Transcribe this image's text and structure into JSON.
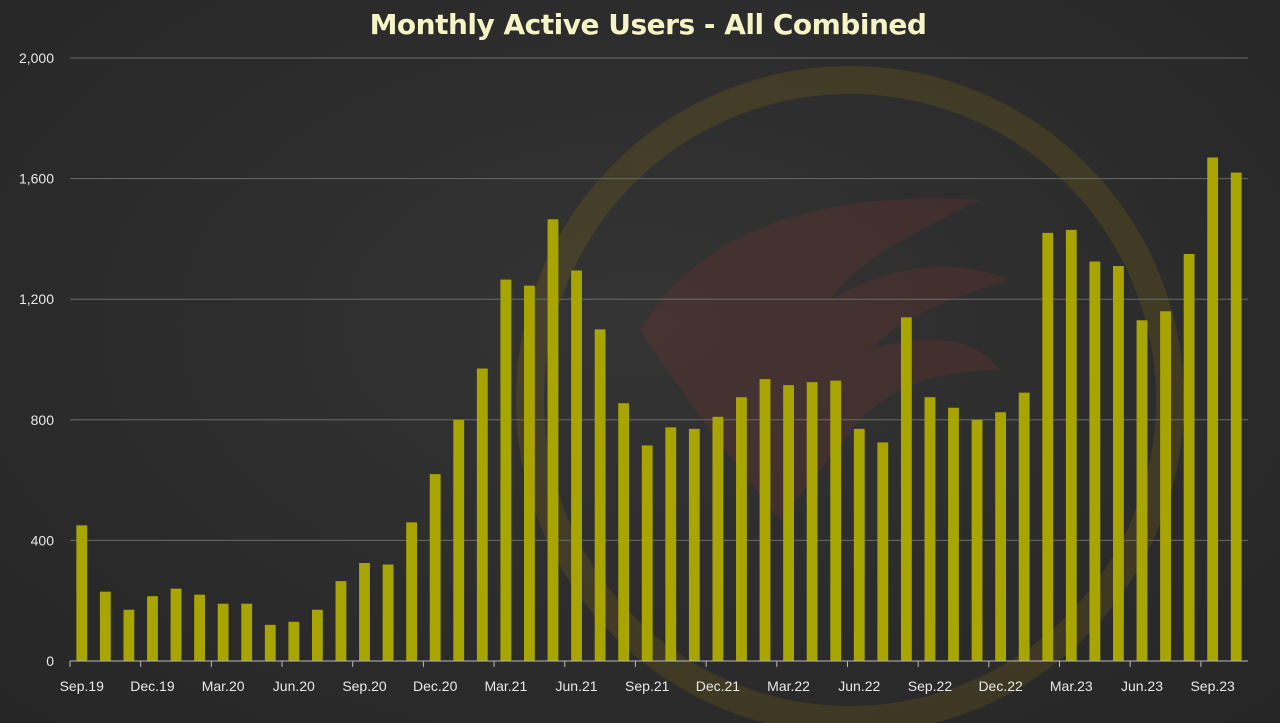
{
  "chart_data": {
    "type": "bar",
    "title": "Monthly Active Users - All Combined",
    "xlabel": "",
    "ylabel": "",
    "ylim": [
      0,
      2000
    ],
    "yticks": [
      "0",
      "400",
      "800",
      "1,200",
      "1,600",
      "2,000"
    ],
    "ytick_values": [
      0,
      400,
      800,
      1200,
      1600,
      2000
    ],
    "grid": true,
    "legend": "none",
    "bar_color": "#a8a400",
    "categories": [
      "Sep.19",
      "Oct.19",
      "Nov.19",
      "Dec.19",
      "Jan.20",
      "Feb.20",
      "Mar.20",
      "Apr.20",
      "May.20",
      "Jun.20",
      "Jul.20",
      "Aug.20",
      "Sep.20",
      "Oct.20",
      "Nov.20",
      "Dec.20",
      "Jan.21",
      "Feb.21",
      "Mar.21",
      "Apr.21",
      "May.21",
      "Jun.21",
      "Jul.21",
      "Aug.21",
      "Sep.21",
      "Oct.21",
      "Nov.21",
      "Dec.21",
      "Jan.22",
      "Feb.22",
      "Mar.22",
      "Apr.22",
      "May.22",
      "Jun.22",
      "Jul.22",
      "Aug.22",
      "Sep.22",
      "Oct.22",
      "Nov.22",
      "Dec.22",
      "Jan.23",
      "Feb.23",
      "Mar.23",
      "Apr.23",
      "May.23",
      "Jun.23",
      "Jul.23",
      "Aug.23",
      "Sep.23",
      "Oct.23"
    ],
    "xtick_labels_shown": [
      "Sep.19",
      "Dec.19",
      "Mar.20",
      "Jun.20",
      "Sep.20",
      "Dec.20",
      "Mar.21",
      "Jun.21",
      "Sep.21",
      "Dec.21",
      "Mar.22",
      "Jun.22",
      "Sep.22",
      "Dec.22",
      "Mar.23",
      "Jun.23",
      "Sep.23"
    ],
    "values": [
      450,
      230,
      170,
      215,
      240,
      220,
      190,
      190,
      120,
      130,
      170,
      265,
      325,
      320,
      460,
      620,
      800,
      970,
      1265,
      1245,
      1465,
      1295,
      1100,
      855,
      715,
      775,
      770,
      810,
      875,
      935,
      915,
      925,
      930,
      770,
      725,
      1140,
      875,
      840,
      800,
      825,
      890,
      1420,
      1430,
      1325,
      1310,
      1130,
      1160,
      1350,
      1670,
      1620
    ]
  }
}
